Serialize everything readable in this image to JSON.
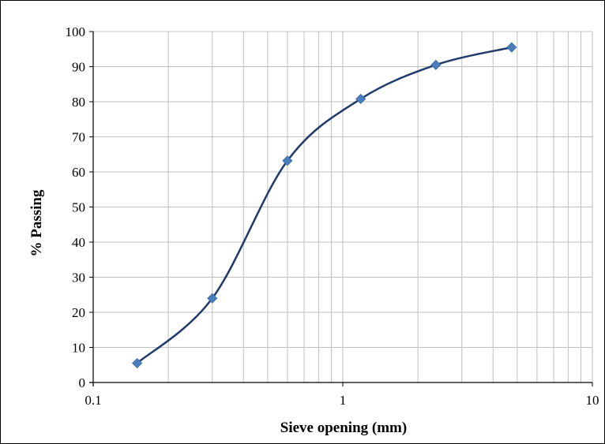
{
  "chart_data": {
    "type": "scatter",
    "title": "",
    "xlabel": "Sieve opening (mm)",
    "ylabel": "% Passing",
    "x_scale": "log",
    "xlim": [
      0.1,
      10
    ],
    "ylim": [
      0,
      100
    ],
    "x_ticks": [
      "0.1",
      "1",
      "10"
    ],
    "y_ticks": [
      "0",
      "10",
      "20",
      "30",
      "40",
      "50",
      "60",
      "70",
      "80",
      "90",
      "100"
    ],
    "grid": "on (major and minor, log x)",
    "legend": "none",
    "series": [
      {
        "x": [
          0.15,
          0.3,
          0.6,
          1.18,
          2.36,
          4.75
        ],
        "y": [
          5.5,
          24,
          63.2,
          80.8,
          90.5,
          95.5
        ],
        "marker": "diamond",
        "line": "smooth"
      }
    ],
    "colors": {
      "line": "#1f3a6b",
      "marker": "#4a7ebb",
      "grid": "#bfbfbf",
      "axis": "#000000"
    }
  }
}
